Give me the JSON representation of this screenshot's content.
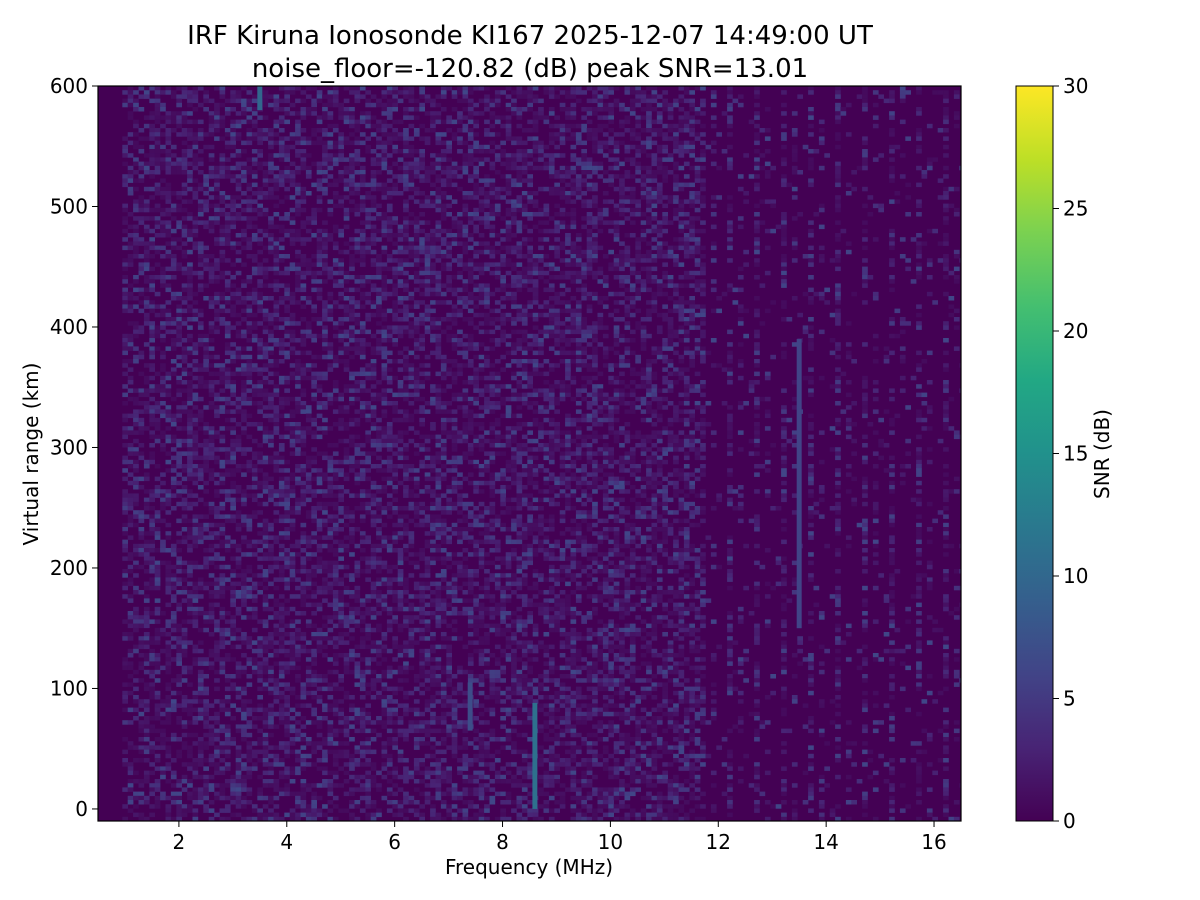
{
  "title_line1": "IRF Kiruna Ionosonde KI167 2025-12-07 14:49:00  UT",
  "title_line2": "noise_floor=-120.82 (dB) peak SNR=13.01",
  "chart_data": {
    "type": "heatmap",
    "xlabel": "Frequency (MHz)",
    "ylabel": "Virtual range (km)",
    "xlim": [
      0.5,
      16.5
    ],
    "ylim": [
      -10,
      600
    ],
    "xticks": [
      2,
      4,
      6,
      8,
      10,
      12,
      14,
      16
    ],
    "yticks": [
      0,
      100,
      200,
      300,
      400,
      500,
      600
    ],
    "colorbar": {
      "label": "SNR (dB)",
      "range": [
        0,
        30
      ],
      "ticks": [
        0,
        5,
        10,
        15,
        20,
        25,
        30
      ],
      "colormap": "viridis"
    },
    "noise_floor_db": -120.82,
    "peak_snr_db": 13.01,
    "features": [
      {
        "freq_mhz": 8.6,
        "range_km": [
          0,
          88
        ],
        "snr_db": 11
      },
      {
        "freq_mhz": 3.5,
        "range_km": [
          580,
          600
        ],
        "snr_db": 10
      },
      {
        "freq_mhz": 7.4,
        "range_km": [
          65,
          105
        ],
        "snr_db": 7
      },
      {
        "freq_mhz": 13.5,
        "range_km": [
          150,
          390
        ],
        "snr_db": 6
      }
    ]
  },
  "colors": {
    "background": "#440154",
    "low": "#440154",
    "mid": "#21918c",
    "high": "#fde725"
  }
}
